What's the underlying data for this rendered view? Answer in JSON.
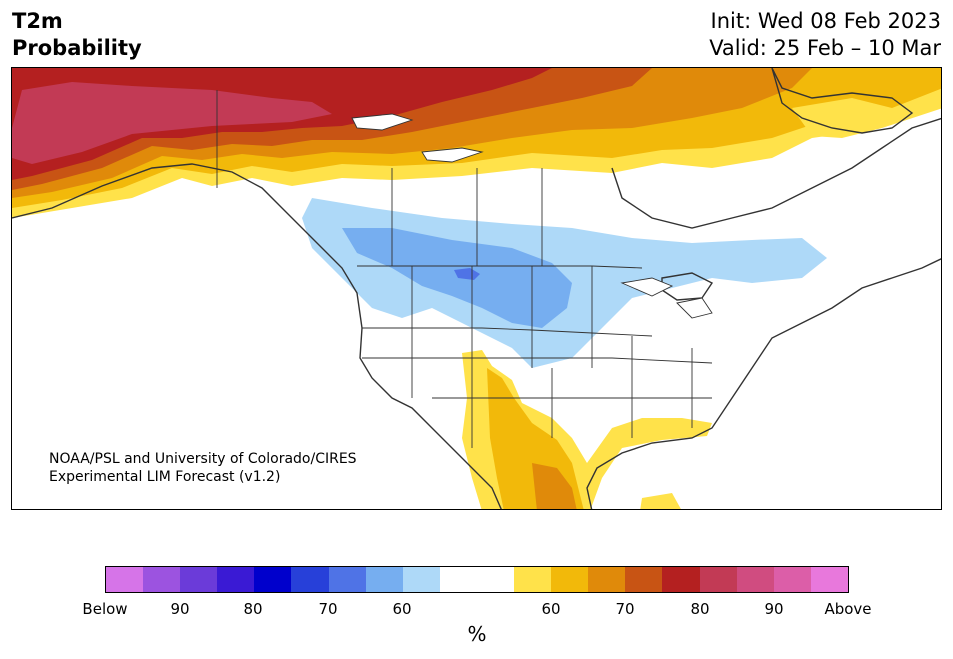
{
  "header": {
    "title_line1": "T2m",
    "title_line2": "Probability",
    "init_label": "Init: Wed 08 Feb 2023",
    "valid_label": "Valid: 25 Feb – 10 Mar"
  },
  "credit": {
    "line1": "NOAA/PSL and University of Colorado/CIRES",
    "line2": "Experimental LIM Forecast (v1.2)"
  },
  "colorbar": {
    "colors": [
      "#d674e8",
      "#9c53e0",
      "#6b3bd9",
      "#3a1ad4",
      "#0000cc",
      "#2740d9",
      "#4f73e6",
      "#76aef0",
      "#aed9f8",
      "#ffffff",
      "#ffffff",
      "#ffe24a",
      "#f2b90a",
      "#e08a0a",
      "#c85414",
      "#b42020",
      "#c23a55",
      "#d04c80",
      "#dc5ea8",
      "#e878dc"
    ],
    "tick_labels": [
      "Below",
      "90",
      "80",
      "70",
      "60",
      "60",
      "70",
      "80",
      "90",
      "Above"
    ],
    "unit_label": "%"
  },
  "map": {
    "palette": {
      "above_90": "#c23a55",
      "above_80": "#b42020",
      "above_75": "#c85414",
      "above_70": "#e08a0a",
      "above_65": "#f2b90a",
      "above_60": "#ffe24a",
      "below_60": "#aed9f8",
      "below_65": "#76aef0",
      "below_70": "#4f73e6",
      "border": "#333333"
    }
  }
}
